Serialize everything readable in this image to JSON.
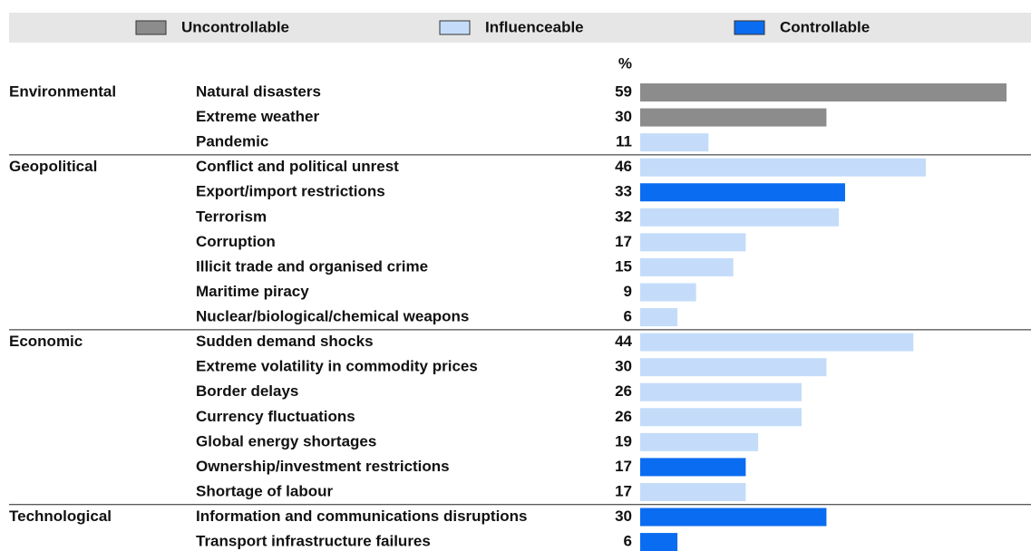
{
  "chart_data": {
    "type": "bar",
    "legend": [
      {
        "name": "Uncontrollable",
        "color": "#8c8c8c"
      },
      {
        "name": "Influenceable",
        "color": "#c4dcfa"
      },
      {
        "name": "Controllable",
        "color": "#0a6cf0"
      }
    ],
    "value_header": "%",
    "groups": [
      {
        "name": "Environmental",
        "rows": [
          {
            "label": "Natural disasters",
            "value": 59,
            "color": "#8c8c8c"
          },
          {
            "label": "Extreme weather",
            "value": 30,
            "color": "#8c8c8c"
          },
          {
            "label": "Pandemic",
            "value": 11,
            "color": "#c4dcfa"
          }
        ]
      },
      {
        "name": "Geopolitical",
        "rows": [
          {
            "label": "Conflict and political unrest",
            "value": 46,
            "color": "#c4dcfa"
          },
          {
            "label": "Export/import restrictions",
            "value": 33,
            "color": "#0a6cf0"
          },
          {
            "label": "Terrorism",
            "value": 32,
            "color": "#c4dcfa"
          },
          {
            "label": "Corruption",
            "value": 17,
            "color": "#c4dcfa"
          },
          {
            "label": "Illicit trade and organised crime",
            "value": 15,
            "color": "#c4dcfa"
          },
          {
            "label": "Maritime piracy",
            "value": 9,
            "color": "#c4dcfa"
          },
          {
            "label": "Nuclear/biological/chemical weapons",
            "value": 6,
            "color": "#c4dcfa"
          }
        ]
      },
      {
        "name": "Economic",
        "rows": [
          {
            "label": "Sudden demand shocks",
            "value": 44,
            "color": "#c4dcfa"
          },
          {
            "label": "Extreme volatility in commodity prices",
            "value": 30,
            "color": "#c4dcfa"
          },
          {
            "label": "Border delays",
            "value": 26,
            "color": "#c4dcfa"
          },
          {
            "label": "Currency fluctuations",
            "value": 26,
            "color": "#c4dcfa"
          },
          {
            "label": "Global energy shortages",
            "value": 19,
            "color": "#c4dcfa"
          },
          {
            "label": "Ownership/investment restrictions",
            "value": 17,
            "color": "#0a6cf0"
          },
          {
            "label": "Shortage of labour",
            "value": 17,
            "color": "#c4dcfa"
          }
        ]
      },
      {
        "name": "Technological",
        "rows": [
          {
            "label": "Information and communications disruptions",
            "value": 30,
            "color": "#0a6cf0"
          },
          {
            "label": "Transport infrastructure failures",
            "value": 6,
            "color": "#0a6cf0"
          }
        ]
      }
    ]
  }
}
